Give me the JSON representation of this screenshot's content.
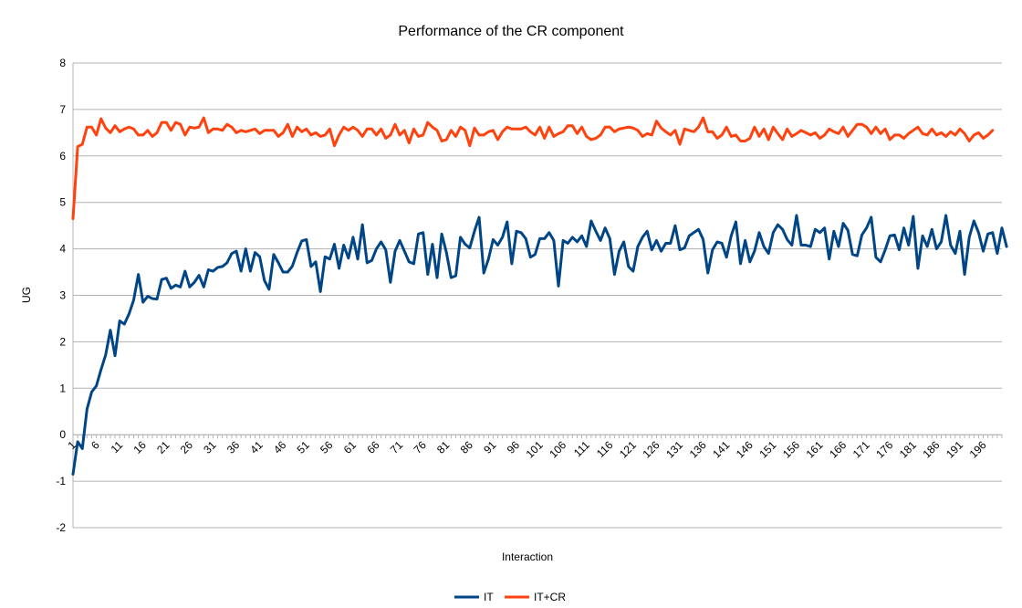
{
  "chart_data": {
    "type": "line",
    "title": "Performance of the CR component",
    "xlabel": "Interaction",
    "ylabel": "UG",
    "ylim": [
      -2,
      8
    ],
    "yticks": [
      -2,
      -1,
      0,
      1,
      2,
      3,
      4,
      5,
      6,
      7,
      8
    ],
    "xlim": [
      1,
      200
    ],
    "xticks": [
      1,
      6,
      11,
      16,
      21,
      26,
      31,
      36,
      41,
      46,
      51,
      56,
      61,
      66,
      71,
      76,
      81,
      86,
      91,
      96,
      101,
      106,
      111,
      116,
      121,
      126,
      131,
      136,
      141,
      146,
      151,
      156,
      161,
      166,
      171,
      176,
      181,
      186,
      191,
      196
    ],
    "grid": "horizontal",
    "legend_position": "bottom",
    "series": [
      {
        "name": "IT",
        "color": "#004586",
        "values": [
          -0.85,
          -0.15,
          -0.3,
          0.55,
          0.92,
          1.05,
          1.4,
          1.72,
          2.25,
          1.7,
          2.45,
          2.38,
          2.6,
          2.9,
          3.45,
          2.85,
          2.98,
          2.93,
          2.92,
          3.34,
          3.37,
          3.15,
          3.22,
          3.18,
          3.52,
          3.18,
          3.28,
          3.43,
          3.18,
          3.55,
          3.52,
          3.6,
          3.62,
          3.7,
          3.9,
          3.95,
          3.52,
          4.0,
          3.52,
          3.92,
          3.83,
          3.32,
          3.13,
          3.88,
          3.7,
          3.5,
          3.5,
          3.63,
          3.92,
          4.17,
          4.2,
          3.62,
          3.72,
          3.08,
          3.83,
          3.78,
          4.1,
          3.58,
          4.08,
          3.8,
          4.25,
          3.78,
          4.52,
          3.7,
          3.75,
          4.0,
          4.15,
          3.98,
          3.28,
          3.95,
          4.18,
          3.95,
          3.72,
          3.68,
          4.32,
          4.35,
          3.45,
          4.1,
          3.38,
          4.32,
          3.92,
          3.38,
          3.42,
          4.25,
          4.1,
          4.02,
          4.38,
          4.68,
          3.48,
          3.78,
          4.2,
          4.08,
          4.25,
          4.58,
          3.68,
          4.38,
          4.35,
          4.22,
          3.82,
          3.88,
          4.22,
          4.22,
          4.35,
          4.18,
          3.2,
          4.18,
          4.12,
          4.25,
          4.15,
          4.28,
          4.05,
          4.6,
          4.38,
          4.18,
          4.45,
          4.22,
          3.45,
          3.95,
          4.15,
          3.62,
          3.52,
          4.05,
          4.25,
          4.38,
          3.98,
          4.18,
          3.95,
          4.12,
          4.12,
          4.5,
          3.98,
          4.02,
          4.28,
          4.35,
          4.42,
          4.2,
          3.48,
          3.98,
          4.15,
          4.12,
          3.82,
          4.28,
          4.58,
          3.68,
          4.18,
          3.72,
          3.95,
          4.35,
          4.05,
          3.9,
          4.35,
          4.52,
          4.42,
          4.2,
          4.08,
          4.72,
          4.08,
          4.08,
          4.05,
          4.42,
          4.35,
          4.45,
          3.78,
          4.38,
          4.05,
          4.55,
          4.4,
          3.88,
          3.85,
          4.3,
          4.45,
          4.68,
          3.82,
          3.72,
          3.98,
          4.28,
          4.3,
          3.98,
          4.45,
          4.08,
          4.7,
          3.58,
          4.28,
          4.05,
          4.42,
          4.0,
          4.15,
          4.72,
          4.08,
          3.9,
          4.38,
          3.45,
          4.25,
          4.6,
          4.35,
          3.95,
          4.32,
          4.35,
          3.9,
          4.45,
          4.05
        ]
      },
      {
        "name": "IT+CR",
        "color": "#ff420e",
        "values": [
          4.65,
          6.2,
          6.25,
          6.62,
          6.62,
          6.45,
          6.8,
          6.6,
          6.5,
          6.65,
          6.52,
          6.58,
          6.62,
          6.58,
          6.45,
          6.45,
          6.55,
          6.42,
          6.5,
          6.72,
          6.72,
          6.55,
          6.72,
          6.68,
          6.45,
          6.62,
          6.6,
          6.62,
          6.82,
          6.5,
          6.58,
          6.58,
          6.55,
          6.68,
          6.62,
          6.5,
          6.55,
          6.52,
          6.55,
          6.58,
          6.48,
          6.55,
          6.55,
          6.55,
          6.42,
          6.5,
          6.68,
          6.42,
          6.62,
          6.52,
          6.58,
          6.45,
          6.5,
          6.42,
          6.45,
          6.58,
          6.22,
          6.45,
          6.62,
          6.55,
          6.62,
          6.55,
          6.42,
          6.58,
          6.58,
          6.45,
          6.58,
          6.38,
          6.45,
          6.68,
          6.45,
          6.55,
          6.28,
          6.58,
          6.42,
          6.45,
          6.72,
          6.62,
          6.55,
          6.32,
          6.35,
          6.55,
          6.42,
          6.62,
          6.55,
          6.22,
          6.6,
          6.45,
          6.45,
          6.52,
          6.55,
          6.35,
          6.52,
          6.62,
          6.58,
          6.58,
          6.58,
          6.62,
          6.52,
          6.45,
          6.62,
          6.38,
          6.62,
          6.42,
          6.48,
          6.52,
          6.65,
          6.65,
          6.48,
          6.62,
          6.42,
          6.35,
          6.38,
          6.45,
          6.62,
          6.62,
          6.52,
          6.58,
          6.6,
          6.62,
          6.6,
          6.55,
          6.42,
          6.48,
          6.45,
          6.75,
          6.6,
          6.52,
          6.45,
          6.55,
          6.25,
          6.58,
          6.55,
          6.52,
          6.62,
          6.82,
          6.52,
          6.52,
          6.38,
          6.45,
          6.62,
          6.42,
          6.45,
          6.32,
          6.32,
          6.38,
          6.62,
          6.42,
          6.58,
          6.35,
          6.62,
          6.48,
          6.35,
          6.58,
          6.42,
          6.48,
          6.55,
          6.5,
          6.45,
          6.5,
          6.38,
          6.45,
          6.58,
          6.52,
          6.48,
          6.62,
          6.42,
          6.55,
          6.68,
          6.68,
          6.62,
          6.48,
          6.62,
          6.48,
          6.58,
          6.35,
          6.45,
          6.45,
          6.38,
          6.48,
          6.55,
          6.62,
          6.48,
          6.45,
          6.58,
          6.45,
          6.5,
          6.42,
          6.52,
          6.45,
          6.58,
          6.48,
          6.32,
          6.45,
          6.5,
          6.38,
          6.45,
          6.55
        ]
      }
    ]
  }
}
